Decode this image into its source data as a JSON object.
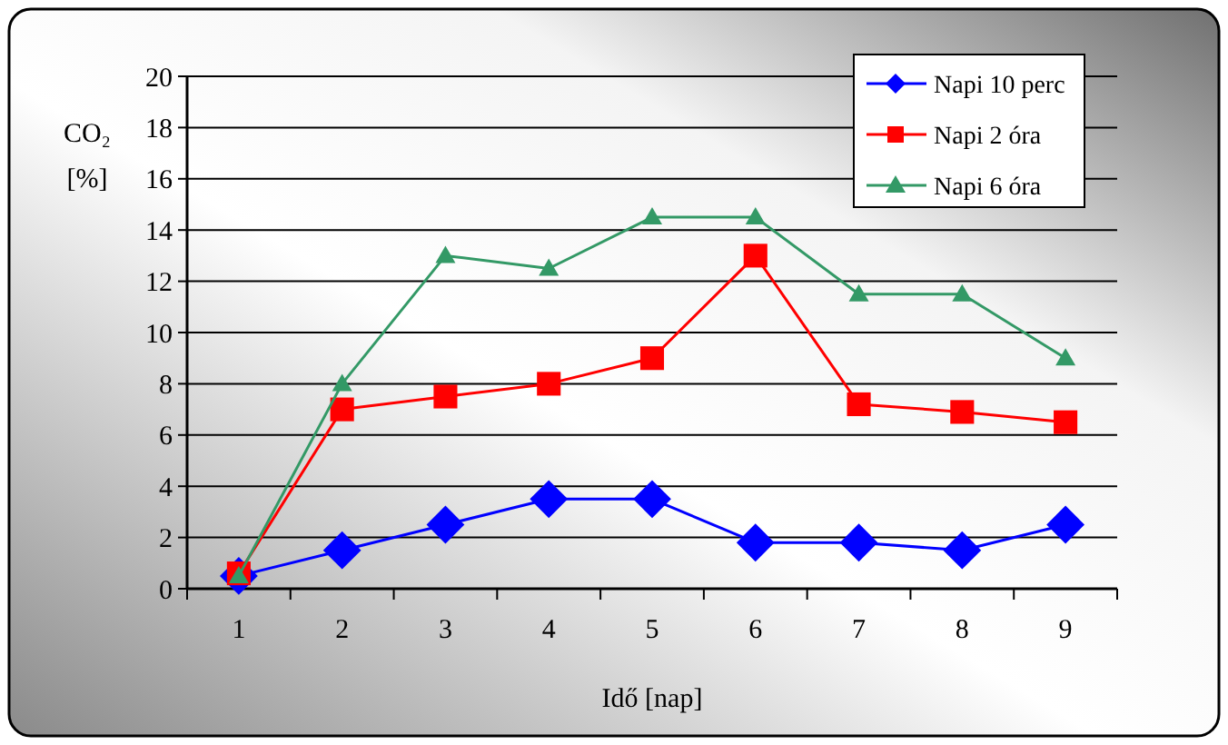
{
  "chart_data": {
    "type": "line",
    "xlabel": "Idő [nap]",
    "ylabel": "CO₂ [%]",
    "categories": [
      "1",
      "2",
      "3",
      "4",
      "5",
      "6",
      "7",
      "8",
      "9"
    ],
    "series": [
      {
        "name": "Napi 10 perc",
        "color": "#0000ff",
        "marker": "diamond",
        "values": [
          0.5,
          1.5,
          2.5,
          3.5,
          3.5,
          1.8,
          1.8,
          1.5,
          2.5
        ]
      },
      {
        "name": "Napi 2 óra",
        "color": "#ff0000",
        "marker": "square",
        "values": [
          0.6,
          7,
          7.5,
          8,
          9,
          13,
          7.2,
          6.9,
          6.5
        ]
      },
      {
        "name": "Napi 6 óra",
        "color": "#339966",
        "marker": "triangle",
        "values": [
          0.5,
          8,
          13,
          12.5,
          14.5,
          14.5,
          11.5,
          11.5,
          9
        ]
      }
    ],
    "ylim": [
      0,
      20
    ],
    "yticks": [
      0,
      2,
      4,
      6,
      8,
      10,
      12,
      14,
      16,
      18,
      20
    ],
    "grid": "y",
    "legend": "top right"
  }
}
